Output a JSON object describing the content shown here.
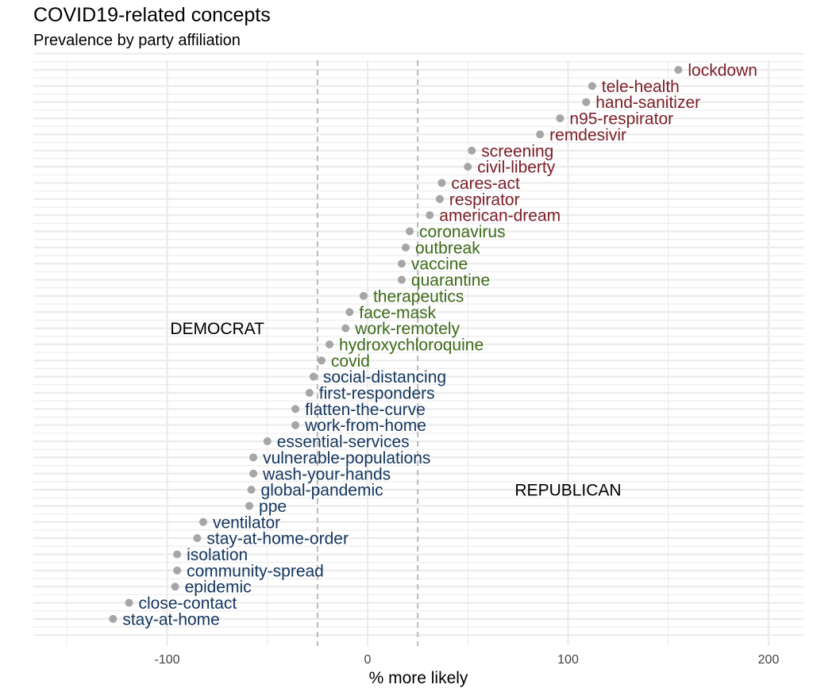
{
  "chart_data": {
    "type": "scatter",
    "title": "COVID19-related concepts",
    "subtitle": "Prevalence by party affiliation",
    "xlabel": "% more likely",
    "ylabel": "",
    "xlim": [
      -167,
      207
    ],
    "xticks": [
      -100,
      0,
      100,
      200
    ],
    "xtick_labels": [
      "-100",
      "0",
      "100",
      "200"
    ],
    "vlines": [
      -25,
      25
    ],
    "regions": [
      {
        "label": "DEMOCRAT",
        "x": -75,
        "row": 16
      },
      {
        "label": "REPUBLICAN",
        "x": 100,
        "row": 26
      }
    ],
    "colors": {
      "republican": "#7B1E27",
      "neutral": "#3E6B1A",
      "democrat": "#14365E",
      "point": "#A6A6A6",
      "grid": "#EBEBEB",
      "vline": "#BBBBBB"
    },
    "points": [
      {
        "label": "lockdown",
        "x": 155,
        "group": "republican"
      },
      {
        "label": "tele-health",
        "x": 112,
        "group": "republican"
      },
      {
        "label": "hand-sanitizer",
        "x": 109,
        "group": "republican"
      },
      {
        "label": "n95-respirator",
        "x": 96,
        "group": "republican"
      },
      {
        "label": "remdesivir",
        "x": 86,
        "group": "republican"
      },
      {
        "label": "screening",
        "x": 52,
        "group": "republican"
      },
      {
        "label": "civil-liberty",
        "x": 50,
        "group": "republican"
      },
      {
        "label": "cares-act",
        "x": 37,
        "group": "republican"
      },
      {
        "label": "respirator",
        "x": 36,
        "group": "republican"
      },
      {
        "label": "american-dream",
        "x": 31,
        "group": "republican"
      },
      {
        "label": "coronavirus",
        "x": 21,
        "group": "neutral"
      },
      {
        "label": "outbreak",
        "x": 19,
        "group": "neutral"
      },
      {
        "label": "vaccine",
        "x": 17,
        "group": "neutral"
      },
      {
        "label": "quarantine",
        "x": 17,
        "group": "neutral"
      },
      {
        "label": "therapeutics",
        "x": -2,
        "group": "neutral"
      },
      {
        "label": "face-mask",
        "x": -9,
        "group": "neutral"
      },
      {
        "label": "work-remotely",
        "x": -11,
        "group": "neutral"
      },
      {
        "label": "hydroxychloroquine",
        "x": -19,
        "group": "neutral"
      },
      {
        "label": "covid",
        "x": -23,
        "group": "neutral"
      },
      {
        "label": "social-distancing",
        "x": -27,
        "group": "democrat"
      },
      {
        "label": "first-responders",
        "x": -29,
        "group": "democrat"
      },
      {
        "label": "flatten-the-curve",
        "x": -36,
        "group": "democrat"
      },
      {
        "label": "work-from-home",
        "x": -36,
        "group": "democrat"
      },
      {
        "label": "essential-services",
        "x": -50,
        "group": "democrat"
      },
      {
        "label": "vulnerable-populations",
        "x": -57,
        "group": "democrat"
      },
      {
        "label": "wash-your-hands",
        "x": -57,
        "group": "democrat"
      },
      {
        "label": "global-pandemic",
        "x": -58,
        "group": "democrat"
      },
      {
        "label": "ppe",
        "x": -59,
        "group": "democrat"
      },
      {
        "label": "ventilator",
        "x": -82,
        "group": "democrat"
      },
      {
        "label": "stay-at-home-order",
        "x": -85,
        "group": "democrat"
      },
      {
        "label": "isolation",
        "x": -95,
        "group": "democrat"
      },
      {
        "label": "community-spread",
        "x": -95,
        "group": "democrat"
      },
      {
        "label": "epidemic",
        "x": -96,
        "group": "democrat"
      },
      {
        "label": "close-contact",
        "x": -119,
        "group": "democrat"
      },
      {
        "label": "stay-at-home",
        "x": -127,
        "group": "democrat"
      }
    ]
  }
}
